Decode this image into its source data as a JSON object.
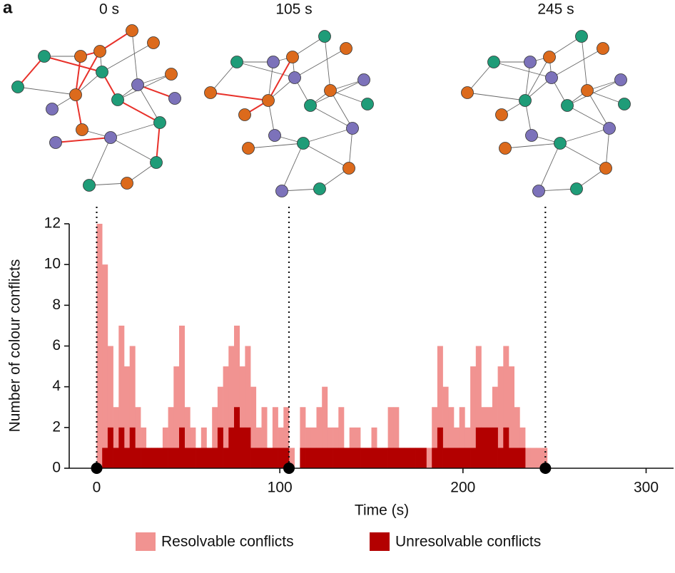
{
  "panel_label": "a",
  "chart_data": {
    "type": "histogram",
    "xlabel": "Time (s)",
    "ylabel": "Number of colour conflicts",
    "xlim": [
      -15,
      315
    ],
    "xticks": [
      0,
      100,
      200,
      300
    ],
    "ylim": [
      0,
      12
    ],
    "yticks": [
      0,
      2,
      4,
      6,
      8,
      10,
      12
    ],
    "snapshots": [
      {
        "label": "0 s",
        "time": 0
      },
      {
        "label": "105 s",
        "time": 105
      },
      {
        "label": "245 s",
        "time": 245
      }
    ],
    "bins": [
      0,
      3,
      6,
      9,
      12,
      15,
      18,
      21,
      24,
      27,
      30,
      33,
      36,
      39,
      42,
      45,
      48,
      51,
      54,
      57,
      60,
      63,
      66,
      69,
      72,
      75,
      78,
      81,
      84,
      87,
      90,
      93,
      96,
      99,
      102,
      105,
      108,
      111,
      114,
      117,
      120,
      123,
      126,
      129,
      132,
      135,
      138,
      141,
      144,
      147,
      150,
      153,
      156,
      159,
      162,
      165,
      168,
      171,
      174,
      177,
      180,
      183,
      186,
      189,
      192,
      195,
      198,
      201,
      204,
      207,
      210,
      213,
      216,
      219,
      222,
      225,
      228,
      231,
      234,
      237,
      240,
      243,
      246
    ],
    "series": [
      {
        "name": "Resolvable conflicts",
        "color": "#f19391",
        "values": [
          12,
          10,
          6,
          3,
          7,
          5,
          6,
          3,
          2,
          1,
          1,
          1,
          2,
          3,
          5,
          7,
          3,
          2,
          1,
          2,
          1,
          3,
          4,
          5,
          6,
          7,
          5,
          6,
          4,
          2,
          3,
          1,
          3,
          2,
          3,
          1,
          0,
          3,
          2,
          2,
          3,
          4,
          2,
          2,
          3,
          1,
          2,
          2,
          1,
          1,
          2,
          1,
          1,
          3,
          3,
          1,
          1,
          1,
          1,
          1,
          1,
          3,
          6,
          4,
          3,
          2,
          3,
          2,
          5,
          6,
          3,
          3,
          4,
          5,
          6,
          5,
          3,
          2,
          1,
          1,
          1,
          1
        ]
      },
      {
        "name": "Unresolvable conflicts",
        "color": "#b30000",
        "values": [
          0,
          1,
          2,
          1,
          2,
          1,
          2,
          1,
          1,
          1,
          1,
          1,
          1,
          1,
          1,
          2,
          1,
          1,
          1,
          1,
          1,
          1,
          2,
          1,
          2,
          3,
          2,
          2,
          1,
          1,
          1,
          1,
          1,
          1,
          1,
          0,
          0,
          1,
          1,
          1,
          1,
          1,
          1,
          1,
          1,
          1,
          1,
          1,
          1,
          1,
          1,
          1,
          1,
          1,
          1,
          1,
          1,
          1,
          1,
          1,
          0,
          1,
          2,
          1,
          1,
          1,
          1,
          1,
          1,
          2,
          2,
          2,
          2,
          1,
          2,
          1,
          1,
          1,
          0,
          0,
          0,
          0
        ]
      }
    ]
  }
}
